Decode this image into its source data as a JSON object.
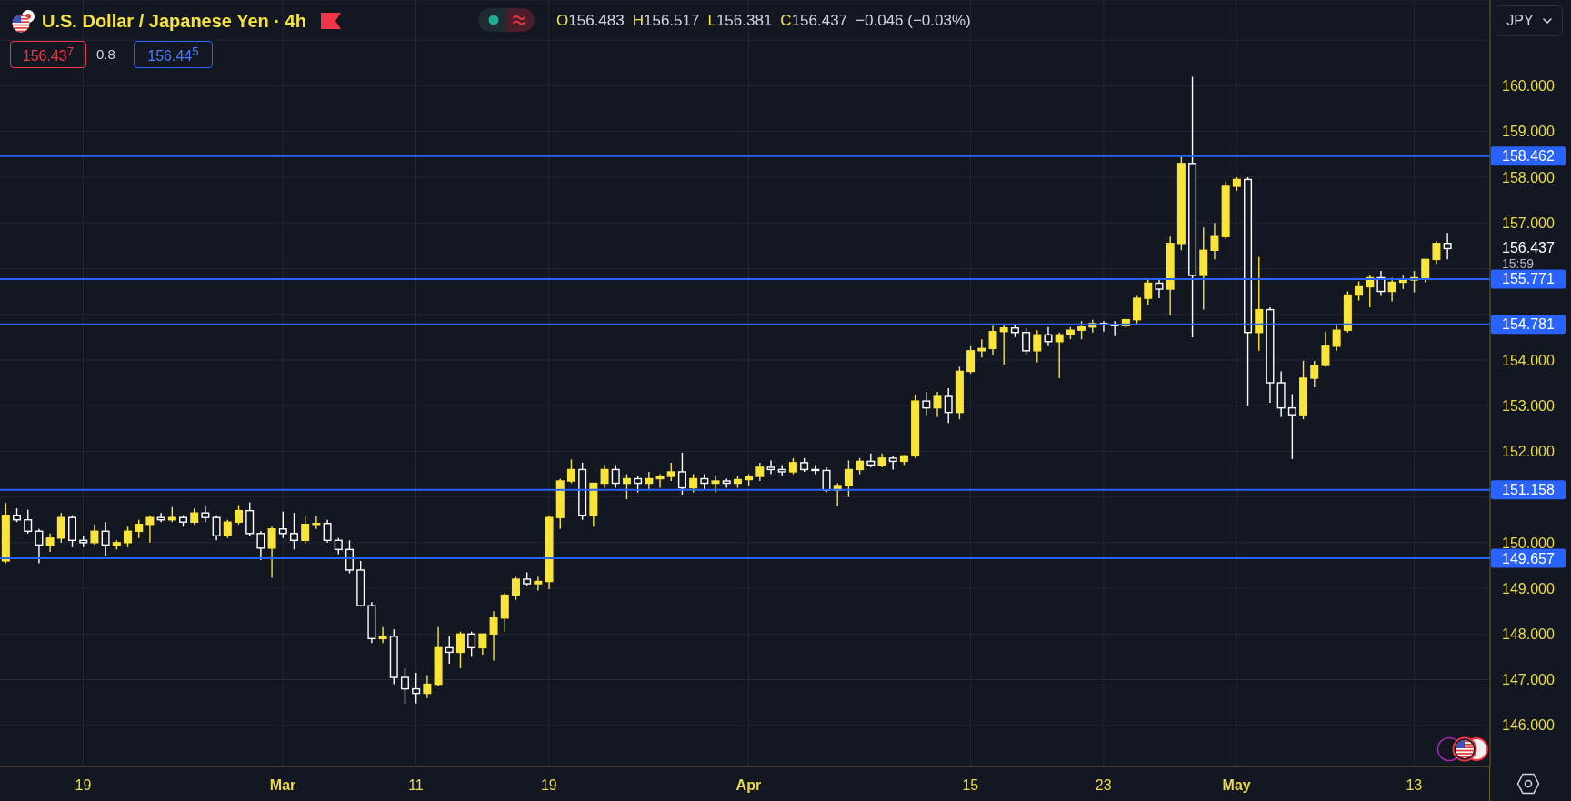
{
  "chart_data": {
    "type": "candlestick",
    "title": "U.S. Dollar / Japanese Yen · 4h",
    "categories": [
      null,
      null,
      null,
      null,
      null,
      null,
      null,
      "19",
      null,
      null,
      null,
      null,
      null,
      null,
      null,
      null,
      null,
      null,
      null,
      null,
      null,
      null,
      null,
      null,
      null,
      "Mar",
      null,
      null,
      null,
      null,
      null,
      null,
      null,
      null,
      null,
      null,
      null,
      "11",
      null,
      null,
      null,
      null,
      null,
      null,
      null,
      null,
      null,
      null,
      null,
      "19",
      null,
      null,
      null,
      null,
      null,
      null,
      null,
      null,
      null,
      null,
      null,
      null,
      null,
      null,
      null,
      null,
      null,
      "Apr",
      null,
      null,
      null,
      null,
      null,
      null,
      null,
      null,
      null,
      null,
      null,
      null,
      null,
      null,
      null,
      null,
      null,
      null,
      null,
      "15",
      null,
      null,
      null,
      null,
      null,
      null,
      null,
      null,
      null,
      null,
      null,
      "23",
      null,
      null,
      null,
      null,
      null,
      null,
      null,
      null,
      null,
      null,
      null,
      "May",
      null,
      null,
      null,
      null,
      null,
      null,
      null,
      null,
      null,
      null,
      null,
      null,
      null,
      null,
      null,
      "13",
      null,
      null,
      null
    ],
    "ohlc": [
      [
        149.6,
        150.87,
        149.55,
        150.6
      ],
      [
        150.6,
        150.75,
        150.45,
        150.5
      ],
      [
        150.5,
        150.72,
        150.2,
        150.25
      ],
      [
        150.25,
        150.3,
        149.55,
        149.95
      ],
      [
        149.95,
        150.2,
        149.8,
        150.1
      ],
      [
        150.1,
        150.65,
        150.0,
        150.55
      ],
      [
        150.55,
        150.6,
        149.9,
        150.05
      ],
      [
        150.05,
        150.15,
        149.9,
        150.0
      ],
      [
        150.0,
        150.4,
        149.95,
        150.25
      ],
      [
        150.25,
        150.45,
        149.72,
        149.95
      ],
      [
        149.95,
        150.05,
        149.85,
        150.0
      ],
      [
        150.0,
        150.35,
        149.9,
        150.25
      ],
      [
        150.25,
        150.5,
        150.1,
        150.4
      ],
      [
        150.4,
        150.6,
        150.0,
        150.55
      ],
      [
        150.55,
        150.65,
        150.45,
        150.5
      ],
      [
        150.5,
        150.78,
        150.45,
        150.55
      ],
      [
        150.55,
        150.6,
        150.35,
        150.45
      ],
      [
        150.45,
        150.75,
        150.4,
        150.65
      ],
      [
        150.65,
        150.82,
        150.45,
        150.55
      ],
      [
        150.55,
        150.6,
        150.05,
        150.15
      ],
      [
        150.15,
        150.5,
        150.1,
        150.45
      ],
      [
        150.45,
        150.82,
        150.4,
        150.7
      ],
      [
        150.7,
        150.88,
        150.15,
        150.2
      ],
      [
        150.2,
        150.25,
        149.62,
        149.88
      ],
      [
        149.88,
        150.35,
        149.23,
        150.3
      ],
      [
        150.3,
        150.68,
        150.1,
        150.2
      ],
      [
        150.2,
        150.65,
        149.85,
        150.05
      ],
      [
        150.05,
        150.58,
        149.98,
        150.4
      ],
      [
        150.4,
        150.58,
        150.3,
        150.42
      ],
      [
        150.42,
        150.5,
        150.0,
        150.05
      ],
      [
        150.05,
        150.1,
        149.75,
        149.85
      ],
      [
        149.85,
        150.05,
        149.33,
        149.4
      ],
      [
        149.4,
        149.6,
        148.6,
        148.62
      ],
      [
        148.62,
        148.7,
        147.8,
        147.9
      ],
      [
        147.9,
        148.15,
        147.8,
        147.95
      ],
      [
        147.95,
        148.1,
        146.9,
        147.05
      ],
      [
        147.05,
        147.25,
        146.48,
        146.8
      ],
      [
        146.8,
        147.15,
        146.48,
        146.7
      ],
      [
        146.7,
        147.1,
        146.6,
        146.9
      ],
      [
        146.9,
        148.15,
        146.85,
        147.7
      ],
      [
        147.7,
        147.95,
        147.35,
        147.6
      ],
      [
        147.6,
        148.05,
        147.25,
        148.0
      ],
      [
        148.0,
        148.05,
        147.5,
        147.7
      ],
      [
        147.7,
        148.0,
        147.55,
        148.0
      ],
      [
        148.0,
        148.5,
        147.42,
        148.35
      ],
      [
        148.35,
        148.9,
        148.05,
        148.85
      ],
      [
        148.85,
        149.25,
        148.75,
        149.2
      ],
      [
        149.2,
        149.35,
        149.05,
        149.1
      ],
      [
        149.1,
        149.25,
        148.95,
        149.15
      ],
      [
        149.15,
        150.6,
        148.98,
        150.55
      ],
      [
        150.55,
        151.4,
        150.3,
        151.35
      ],
      [
        151.35,
        151.82,
        151.3,
        151.6
      ],
      [
        151.6,
        151.75,
        150.5,
        150.6
      ],
      [
        150.6,
        151.3,
        150.35,
        151.3
      ],
      [
        151.3,
        151.7,
        151.2,
        151.6
      ],
      [
        151.6,
        151.7,
        151.2,
        151.3
      ],
      [
        151.3,
        151.5,
        150.95,
        151.4
      ],
      [
        151.4,
        151.45,
        151.1,
        151.3
      ],
      [
        151.3,
        151.55,
        151.15,
        151.4
      ],
      [
        151.4,
        151.5,
        151.2,
        151.45
      ],
      [
        151.45,
        151.75,
        151.35,
        151.55
      ],
      [
        151.55,
        151.97,
        151.05,
        151.2
      ],
      [
        151.2,
        151.5,
        151.1,
        151.4
      ],
      [
        151.4,
        151.5,
        151.15,
        151.3
      ],
      [
        151.3,
        151.45,
        151.1,
        151.35
      ],
      [
        151.35,
        151.4,
        151.2,
        151.3
      ],
      [
        151.3,
        151.45,
        151.2,
        151.38
      ],
      [
        151.38,
        151.5,
        151.25,
        151.45
      ],
      [
        151.45,
        151.75,
        151.35,
        151.65
      ],
      [
        151.65,
        151.8,
        151.5,
        151.6
      ],
      [
        151.6,
        151.7,
        151.45,
        151.55
      ],
      [
        151.55,
        151.85,
        151.5,
        151.75
      ],
      [
        151.75,
        151.85,
        151.55,
        151.6
      ],
      [
        151.6,
        151.7,
        151.5,
        151.58
      ],
      [
        151.58,
        151.65,
        151.1,
        151.15
      ],
      [
        151.15,
        151.3,
        150.8,
        151.25
      ],
      [
        151.25,
        151.8,
        151.0,
        151.6
      ],
      [
        151.6,
        151.85,
        151.5,
        151.78
      ],
      [
        151.78,
        151.95,
        151.65,
        151.7
      ],
      [
        151.7,
        151.95,
        151.65,
        151.85
      ],
      [
        151.85,
        151.9,
        151.6,
        151.78
      ],
      [
        151.78,
        151.92,
        151.7,
        151.9
      ],
      [
        151.9,
        153.24,
        151.85,
        153.1
      ],
      [
        153.1,
        153.3,
        152.8,
        152.95
      ],
      [
        152.95,
        153.3,
        152.75,
        153.2
      ],
      [
        153.2,
        153.38,
        152.62,
        152.85
      ],
      [
        152.85,
        153.85,
        152.7,
        153.75
      ],
      [
        153.75,
        154.3,
        153.7,
        154.2
      ],
      [
        154.2,
        154.45,
        154.05,
        154.25
      ],
      [
        154.25,
        154.75,
        154.1,
        154.62
      ],
      [
        154.62,
        154.78,
        153.9,
        154.7
      ],
      [
        154.7,
        154.78,
        154.5,
        154.6
      ],
      [
        154.6,
        154.7,
        154.1,
        154.2
      ],
      [
        154.2,
        154.65,
        153.95,
        154.55
      ],
      [
        154.55,
        154.72,
        154.3,
        154.4
      ],
      [
        154.4,
        154.6,
        153.6,
        154.55
      ],
      [
        154.55,
        154.72,
        154.45,
        154.65
      ],
      [
        154.65,
        154.85,
        154.45,
        154.72
      ],
      [
        154.72,
        154.88,
        154.6,
        154.8
      ],
      [
        154.8,
        154.85,
        154.62,
        154.78
      ],
      [
        154.78,
        154.85,
        154.52,
        154.75
      ],
      [
        154.75,
        154.9,
        154.7,
        154.88
      ],
      [
        154.88,
        155.4,
        154.8,
        155.35
      ],
      [
        155.35,
        155.75,
        155.2,
        155.68
      ],
      [
        155.68,
        155.75,
        155.35,
        155.55
      ],
      [
        155.55,
        156.7,
        154.97,
        156.55
      ],
      [
        156.55,
        158.44,
        156.4,
        158.3
      ],
      [
        158.3,
        160.2,
        154.49,
        155.85
      ],
      [
        155.85,
        156.9,
        155.1,
        156.4
      ],
      [
        156.4,
        157.0,
        156.2,
        156.7
      ],
      [
        156.7,
        157.9,
        156.65,
        157.8
      ],
      [
        157.8,
        158.0,
        157.7,
        157.95
      ],
      [
        157.95,
        158.0,
        153.0,
        154.6
      ],
      [
        154.6,
        156.25,
        154.2,
        155.1
      ],
      [
        155.1,
        155.15,
        153.06,
        153.5
      ],
      [
        153.5,
        153.75,
        152.75,
        152.95
      ],
      [
        152.95,
        153.25,
        151.83,
        152.8
      ],
      [
        152.8,
        153.98,
        152.7,
        153.6
      ],
      [
        153.6,
        153.98,
        153.4,
        153.88
      ],
      [
        153.88,
        154.62,
        153.85,
        154.3
      ],
      [
        154.3,
        154.75,
        154.2,
        154.65
      ],
      [
        154.65,
        155.5,
        154.6,
        155.42
      ],
      [
        155.42,
        155.72,
        155.3,
        155.6
      ],
      [
        155.6,
        155.85,
        155.15,
        155.8
      ],
      [
        155.8,
        155.95,
        155.4,
        155.5
      ],
      [
        155.5,
        155.8,
        155.28,
        155.7
      ],
      [
        155.7,
        155.85,
        155.55,
        155.75
      ],
      [
        155.75,
        155.95,
        155.48,
        155.8
      ],
      [
        155.8,
        156.2,
        155.7,
        156.2
      ],
      [
        156.2,
        156.6,
        156.1,
        156.55
      ],
      [
        156.55,
        156.78,
        156.2,
        156.437
      ]
    ],
    "colors": [
      "#f9e43a",
      "#ffffff",
      "#ffffff",
      "#ffffff",
      "#f9e43a",
      "#f9e43a",
      "#ffffff",
      "#ffffff",
      "#f9e43a",
      "#ffffff",
      "#f9e43a",
      "#f9e43a",
      "#f9e43a",
      "#f9e43a",
      "#ffffff",
      "#f9e43a",
      "#ffffff",
      "#f9e43a",
      "#ffffff",
      "#ffffff",
      "#f9e43a",
      "#f9e43a",
      "#ffffff",
      "#ffffff",
      "#f9e43a",
      "#ffffff",
      "#ffffff",
      "#f9e43a",
      "#f9e43a",
      "#ffffff",
      "#ffffff",
      "#ffffff",
      "#ffffff",
      "#ffffff",
      "#f9e43a",
      "#ffffff",
      "#ffffff",
      "#ffffff",
      "#f9e43a",
      "#f9e43a",
      "#ffffff",
      "#f9e43a",
      "#ffffff",
      "#f9e43a",
      "#f9e43a",
      "#f9e43a",
      "#f9e43a",
      "#ffffff",
      "#f9e43a",
      "#f9e43a",
      "#f9e43a",
      "#f9e43a",
      "#ffffff",
      "#f9e43a",
      "#f9e43a",
      "#ffffff",
      "#f9e43a",
      "#ffffff",
      "#f9e43a",
      "#f9e43a",
      "#f9e43a",
      "#ffffff",
      "#f9e43a",
      "#ffffff",
      "#f9e43a",
      "#ffffff",
      "#f9e43a",
      "#f9e43a",
      "#f9e43a",
      "#ffffff",
      "#ffffff",
      "#f9e43a",
      "#ffffff",
      "#ffffff",
      "#ffffff",
      "#f9e43a",
      "#f9e43a",
      "#f9e43a",
      "#ffffff",
      "#f9e43a",
      "#ffffff",
      "#f9e43a",
      "#f9e43a",
      "#ffffff",
      "#f9e43a",
      "#ffffff",
      "#f9e43a",
      "#f9e43a",
      "#f9e43a",
      "#f9e43a",
      "#f9e43a",
      "#ffffff",
      "#ffffff",
      "#f9e43a",
      "#ffffff",
      "#f9e43a",
      "#f9e43a",
      "#f9e43a",
      "#f9e43a",
      "#ffffff",
      "#ffffff",
      "#f9e43a",
      "#f9e43a",
      "#f9e43a",
      "#ffffff",
      "#f9e43a",
      "#f9e43a",
      "#ffffff",
      "#f9e43a",
      "#f9e43a",
      "#f9e43a",
      "#f9e43a",
      "#ffffff",
      "#f9e43a",
      "#ffffff",
      "#ffffff",
      "#ffffff",
      "#f9e43a",
      "#f9e43a",
      "#f9e43a",
      "#f9e43a",
      "#f9e43a",
      "#f9e43a",
      "#f9e43a",
      "#ffffff",
      "#f9e43a",
      "#f9e43a",
      "#f9e43a",
      "#f9e43a",
      "#f9e43a",
      "#ffffff"
    ],
    "ylim": [
      145.1,
      161.88
    ],
    "yticks": [
      {
        "value": 146,
        "label": "146.000"
      },
      {
        "value": 147,
        "label": "147.000"
      },
      {
        "value": 148,
        "label": "148.000"
      },
      {
        "value": 149,
        "label": "149.000"
      },
      {
        "value": 150,
        "label": "150.000"
      },
      {
        "value": 151,
        "label": null
      },
      {
        "value": 152,
        "label": "152.000"
      },
      {
        "value": 153,
        "label": "153.000"
      },
      {
        "value": 154,
        "label": "154.000"
      },
      {
        "value": 155,
        "label": null
      },
      {
        "value": 156,
        "label": null
      },
      {
        "value": 157,
        "label": "157.000"
      },
      {
        "value": 158,
        "label": "158.000"
      },
      {
        "value": 159,
        "label": "159.000"
      },
      {
        "value": 160,
        "label": "160.000"
      },
      {
        "value": 161,
        "label": null
      }
    ],
    "grid": true,
    "ref_lines": [
      {
        "axis": "y",
        "value": 158.462,
        "label": "158.462",
        "color": "#2962ff"
      },
      {
        "axis": "y",
        "value": 155.771,
        "label": "155.771",
        "color": "#2962ff"
      },
      {
        "axis": "y",
        "value": 154.781,
        "label": "154.781",
        "color": "#2962ff"
      },
      {
        "axis": "y",
        "value": 151.158,
        "label": "151.158",
        "color": "#2962ff"
      },
      {
        "axis": "y",
        "value": 149.657,
        "label": "149.657",
        "color": "#2962ff"
      }
    ],
    "annotations": [
      "O156.483",
      "H156.517",
      "L156.381",
      "C156.437",
      "−0.046 (−0.03%)",
      "156.43$^{7}$",
      "0.8",
      "156.44$^{5}$",
      "JPY",
      "156.437",
      "15:59"
    ]
  }
}
